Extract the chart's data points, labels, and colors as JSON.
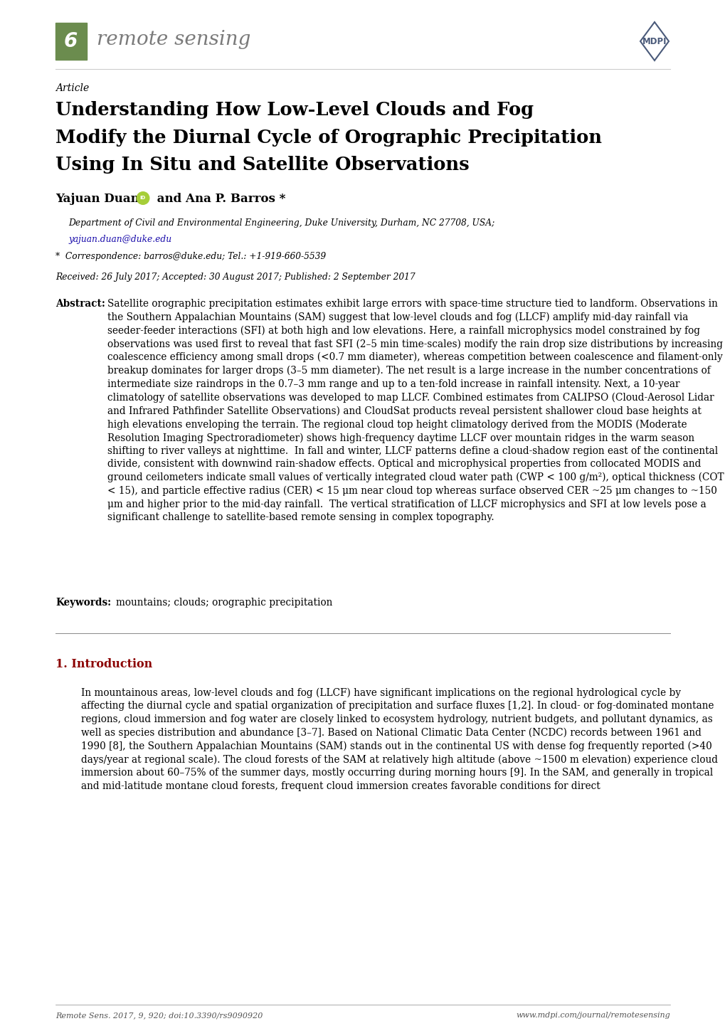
{
  "background_color": "#ffffff",
  "page_width": 10.2,
  "page_height": 14.42,
  "journal_name": "remote sensing",
  "journal_logo_color": "#6b8c4e",
  "mdpi_logo_color": "#4a5a7a",
  "article_label": "Article",
  "title_line1": "Understanding How Low-Level Clouds and Fog",
  "title_line2": "Modify the Diurnal Cycle of Orographic Precipitation",
  "title_line3": "Using In Situ and Satellite Observations",
  "author_name": "Yajuan Duan",
  "author_rest": " and Ana P. Barros *",
  "affiliation1": "Department of Civil and Environmental Engineering, Duke University, Durham, NC 27708, USA;",
  "affiliation2": "yajuan.duan@duke.edu",
  "correspondence": "*  Correspondence: barros@duke.edu; Tel.: +1-919-660-5539",
  "received": "Received: 26 July 2017; Accepted: 30 August 2017; Published: 2 September 2017",
  "abstract_text": "Satellite orographic precipitation estimates exhibit large errors with space-time structure tied to landform. Observations in the Southern Appalachian Mountains (SAM) suggest that low-level clouds and fog (LLCF) amplify mid-day rainfall via seeder-feeder interactions (SFI) at both high and low elevations. Here, a rainfall microphysics model constrained by fog observations was used first to reveal that fast SFI (2–5 min time-scales) modify the rain drop size distributions by increasing coalescence efficiency among small drops (<0.7 mm diameter), whereas competition between coalescence and filament-only breakup dominates for larger drops (3–5 mm diameter). The net result is a large increase in the number concentrations of intermediate size raindrops in the 0.7–3 mm range and up to a ten-fold increase in rainfall intensity. Next, a 10-year climatology of satellite observations was developed to map LLCF. Combined estimates from CALIPSO (Cloud-Aerosol Lidar and Infrared Pathfinder Satellite Observations) and CloudSat products reveal persistent shallower cloud base heights at high elevations enveloping the terrain. The regional cloud top height climatology derived from the MODIS (Moderate Resolution Imaging Spectroradiometer) shows high-frequency daytime LLCF over mountain ridges in the warm season shifting to river valleys at nighttime.  In fall and winter, LLCF patterns define a cloud-shadow region east of the continental divide, consistent with downwind rain-shadow effects. Optical and microphysical properties from collocated MODIS and ground ceilometers indicate small values of vertically integrated cloud water path (CWP < 100 g/m²), optical thickness (COT < 15), and particle effective radius (CER) < 15 μm near cloud top whereas surface observed CER ~25 μm changes to ~150 μm and higher prior to the mid-day rainfall.  The vertical stratification of LLCF microphysics and SFI at low levels pose a significant challenge to satellite-based remote sensing in complex topography.",
  "keywords_text": "mountains; clouds; orographic precipitation",
  "section1_title": "1. Introduction",
  "section1_text": "In mountainous areas, low-level clouds and fog (LLCF) have significant implications on the regional hydrological cycle by affecting the diurnal cycle and spatial organization of precipitation and surface fluxes [1,2]. In cloud- or fog-dominated montane regions, cloud immersion and fog water are closely linked to ecosystem hydrology, nutrient budgets, and pollutant dynamics, as well as species distribution and abundance [3–7]. Based on National Climatic Data Center (NCDC) records between 1961 and 1990 [8], the Southern Appalachian Mountains (SAM) stands out in the continental US with dense fog frequently reported (>40 days/year at regional scale). The cloud forests of the SAM at relatively high altitude (above ~1500 m elevation) experience cloud immersion about 60–75% of the summer days, mostly occurring during morning hours [9]. In the SAM, and generally in tropical and mid-latitude montane cloud forests, frequent cloud immersion creates favorable conditions for direct",
  "footer_left": "Remote Sens. 2017, 9, 920; doi:10.3390/rs9090920",
  "footer_right": "www.mdpi.com/journal/remotesensing",
  "text_color": "#000000",
  "footer_color": "#555555",
  "link_color": "#1a0dab",
  "section_title_color": "#8B0000",
  "orcid_color": "#a6ce39",
  "header_sep_color": "#cccccc",
  "body_sep_color": "#888888"
}
